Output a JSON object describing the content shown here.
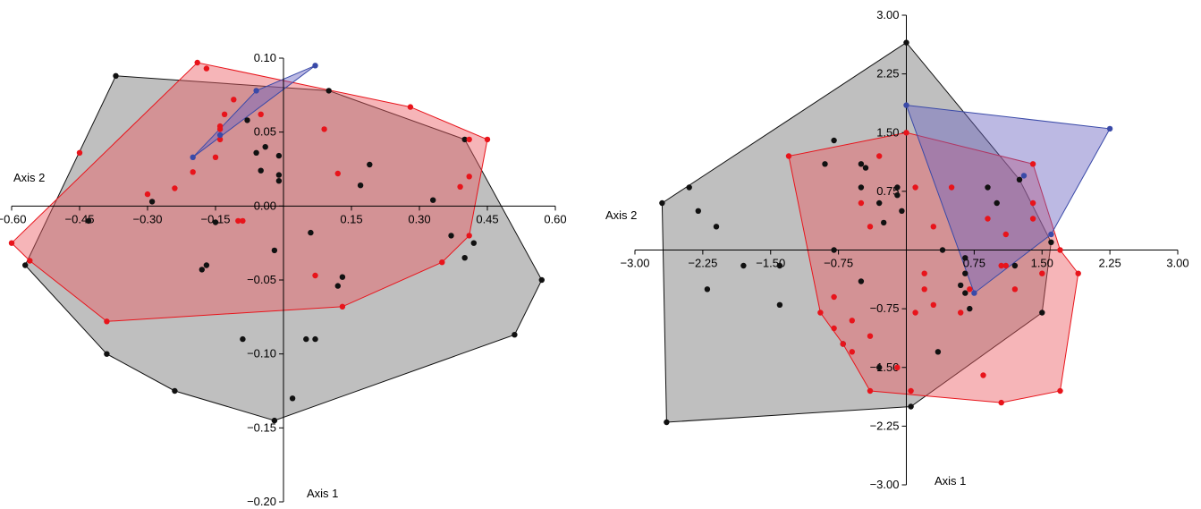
{
  "colors": {
    "black_group": "#111111",
    "black_hull_fill": "#a9a9a9",
    "red_group": "#e8141b",
    "red_hull_fill": "#ec5a62",
    "blue_group": "#3a4aa8",
    "blue_hull_fill": "#6a63c0"
  },
  "chart_data": [
    {
      "type": "scatter",
      "xlabel": "Axis 2",
      "ylabel": "Axis 1",
      "xlim": [
        -0.6,
        0.6
      ],
      "ylim": [
        -0.2,
        0.1
      ],
      "xticks": [
        -0.6,
        -0.45,
        -0.3,
        -0.15,
        0.15,
        0.3,
        0.45,
        0.6
      ],
      "xtick_labels": [
        "−0.60",
        "−0.45",
        "−0.30",
        "−0.15",
        "0.15",
        "0.30",
        "0.45",
        "0.60"
      ],
      "yticks": [
        0.1,
        0.05,
        0.0,
        -0.05,
        -0.1,
        -0.15,
        -0.2
      ],
      "ytick_labels": [
        "0.10",
        "0.05",
        "0.00",
        "−0.05",
        "−0.10",
        "−0.15",
        "−0.20"
      ],
      "grid": false,
      "series": [
        {
          "color_key": "black_group",
          "hull": [
            [
              -0.57,
              -0.04
            ],
            [
              -0.37,
              0.088
            ],
            [
              0.1,
              0.078
            ],
            [
              0.4,
              0.045
            ],
            [
              0.57,
              -0.05
            ],
            [
              0.51,
              -0.087
            ],
            [
              -0.02,
              -0.145
            ],
            [
              -0.24,
              -0.125
            ],
            [
              -0.39,
              -0.1
            ]
          ],
          "points": [
            [
              -0.57,
              -0.04
            ],
            [
              -0.37,
              0.088
            ],
            [
              0.1,
              0.078
            ],
            [
              0.4,
              0.045
            ],
            [
              0.57,
              -0.05
            ],
            [
              0.51,
              -0.087
            ],
            [
              -0.02,
              -0.145
            ],
            [
              -0.24,
              -0.125
            ],
            [
              -0.39,
              -0.1
            ],
            [
              -0.08,
              0.058
            ],
            [
              -0.06,
              0.036
            ],
            [
              -0.04,
              0.04
            ],
            [
              -0.05,
              0.024
            ],
            [
              -0.01,
              0.034
            ],
            [
              -0.01,
              0.021
            ],
            [
              -0.01,
              0.017
            ],
            [
              0.19,
              0.028
            ],
            [
              0.17,
              0.014
            ],
            [
              -0.29,
              0.003
            ],
            [
              -0.43,
              -0.01
            ],
            [
              -0.15,
              -0.011
            ],
            [
              -0.02,
              -0.03
            ],
            [
              -0.17,
              -0.04
            ],
            [
              -0.18,
              -0.043
            ],
            [
              0.06,
              -0.018
            ],
            [
              0.13,
              -0.048
            ],
            [
              0.12,
              -0.054
            ],
            [
              0.4,
              -0.035
            ],
            [
              0.42,
              -0.025
            ],
            [
              0.37,
              -0.02
            ],
            [
              0.33,
              0.004
            ],
            [
              0.05,
              -0.09
            ],
            [
              0.07,
              -0.09
            ],
            [
              -0.09,
              -0.09
            ],
            [
              0.02,
              -0.13
            ]
          ]
        },
        {
          "color_key": "red_group",
          "hull": [
            [
              -0.6,
              -0.025
            ],
            [
              -0.19,
              0.097
            ],
            [
              0.28,
              0.067
            ],
            [
              0.45,
              0.045
            ],
            [
              0.41,
              -0.02
            ],
            [
              0.35,
              -0.038
            ],
            [
              0.13,
              -0.068
            ],
            [
              -0.39,
              -0.078
            ],
            [
              -0.56,
              -0.037
            ]
          ],
          "points": [
            [
              -0.6,
              -0.025
            ],
            [
              -0.19,
              0.097
            ],
            [
              0.28,
              0.067
            ],
            [
              0.45,
              0.045
            ],
            [
              0.41,
              -0.02
            ],
            [
              0.35,
              -0.038
            ],
            [
              0.13,
              -0.068
            ],
            [
              -0.39,
              -0.078
            ],
            [
              -0.56,
              -0.037
            ],
            [
              -0.45,
              0.036
            ],
            [
              -0.17,
              0.093
            ],
            [
              -0.13,
              0.062
            ],
            [
              -0.11,
              0.072
            ],
            [
              -0.05,
              0.062
            ],
            [
              -0.14,
              0.054
            ],
            [
              -0.14,
              0.052
            ],
            [
              -0.14,
              0.045
            ],
            [
              -0.15,
              0.033
            ],
            [
              0.09,
              0.052
            ],
            [
              0.12,
              0.022
            ],
            [
              -0.2,
              0.023
            ],
            [
              -0.24,
              0.012
            ],
            [
              -0.3,
              0.008
            ],
            [
              -0.1,
              -0.01
            ],
            [
              -0.09,
              -0.01
            ],
            [
              0.41,
              0.045
            ],
            [
              0.41,
              0.02
            ],
            [
              0.39,
              0.013
            ],
            [
              0.07,
              -0.047
            ]
          ]
        },
        {
          "color_key": "blue_group",
          "hull": [
            [
              -0.2,
              0.033
            ],
            [
              -0.06,
              0.078
            ],
            [
              0.07,
              0.095
            ]
          ],
          "points": [
            [
              -0.2,
              0.033
            ],
            [
              -0.06,
              0.078
            ],
            [
              0.07,
              0.095
            ],
            [
              -0.14,
              0.048
            ]
          ]
        }
      ]
    },
    {
      "type": "scatter",
      "xlabel": "Axis 2",
      "ylabel": "Axis 1",
      "xlim": [
        -3.0,
        3.0
      ],
      "ylim": [
        -3.0,
        3.0
      ],
      "xticks": [
        -3.0,
        -2.25,
        -1.5,
        -0.75,
        0.75,
        1.5,
        2.25,
        3.0
      ],
      "xtick_labels": [
        "−3.00",
        "−2.25",
        "−1.50",
        "−0.75",
        "0.75",
        "1.50",
        "2.25",
        "3.00"
      ],
      "yticks": [
        3.0,
        2.25,
        1.5,
        0.75,
        -0.75,
        -1.5,
        -2.25,
        -3.0
      ],
      "ytick_labels": [
        "3.00",
        "2.25",
        "1.50",
        "0.75",
        "−0.75",
        "−1.50",
        "−2.25",
        "−3.00"
      ],
      "grid": false,
      "series": [
        {
          "color_key": "black_group",
          "hull": [
            [
              -2.7,
              0.6
            ],
            [
              0.0,
              2.65
            ],
            [
              1.25,
              0.9
            ],
            [
              1.6,
              0.1
            ],
            [
              1.5,
              -0.8
            ],
            [
              0.05,
              -2.0
            ],
            [
              -2.65,
              -2.2
            ]
          ],
          "points": [
            [
              -2.7,
              0.6
            ],
            [
              0.0,
              2.65
            ],
            [
              1.25,
              0.9
            ],
            [
              1.6,
              0.1
            ],
            [
              1.5,
              -0.8
            ],
            [
              0.05,
              -2.0
            ],
            [
              -2.65,
              -2.2
            ],
            [
              -2.4,
              0.8
            ],
            [
              -2.3,
              0.5
            ],
            [
              -2.1,
              0.3
            ],
            [
              -2.2,
              -0.5
            ],
            [
              -1.8,
              -0.2
            ],
            [
              -1.4,
              -0.2
            ],
            [
              -1.4,
              -0.7
            ],
            [
              -0.9,
              1.1
            ],
            [
              -0.8,
              1.4
            ],
            [
              -0.8,
              0.0
            ],
            [
              -0.7,
              -1.2
            ],
            [
              -0.5,
              -0.4
            ],
            [
              -0.5,
              0.8
            ],
            [
              -0.5,
              1.1
            ],
            [
              -0.45,
              1.05
            ],
            [
              -0.3,
              0.6
            ],
            [
              -0.3,
              -1.5
            ],
            [
              -0.25,
              0.35
            ],
            [
              -0.1,
              0.7
            ],
            [
              -0.05,
              0.5
            ],
            [
              -0.1,
              0.8
            ],
            [
              0.4,
              0.0
            ],
            [
              0.6,
              -0.45
            ],
            [
              0.65,
              -0.1
            ],
            [
              0.65,
              -0.3
            ],
            [
              0.65,
              -0.55
            ],
            [
              0.7,
              -0.75
            ],
            [
              0.9,
              0.8
            ],
            [
              1.0,
              0.6
            ],
            [
              0.35,
              -1.3
            ],
            [
              1.2,
              -0.2
            ]
          ]
        },
        {
          "color_key": "red_group",
          "hull": [
            [
              -1.3,
              1.2
            ],
            [
              0.0,
              1.5
            ],
            [
              1.4,
              1.1
            ],
            [
              1.7,
              0.0
            ],
            [
              1.9,
              -0.3
            ],
            [
              1.7,
              -1.8
            ],
            [
              1.05,
              -1.95
            ],
            [
              -0.4,
              -1.8
            ],
            [
              -0.7,
              -1.2
            ],
            [
              -0.95,
              -0.8
            ]
          ],
          "points": [
            [
              -1.3,
              1.2
            ],
            [
              0.0,
              1.5
            ],
            [
              1.4,
              1.1
            ],
            [
              1.7,
              0.0
            ],
            [
              1.9,
              -0.3
            ],
            [
              1.7,
              -1.8
            ],
            [
              1.05,
              -1.95
            ],
            [
              -0.4,
              -1.8
            ],
            [
              -0.7,
              -1.2
            ],
            [
              -0.95,
              -0.8
            ],
            [
              -0.5,
              0.6
            ],
            [
              -0.3,
              1.2
            ],
            [
              -0.4,
              0.3
            ],
            [
              0.1,
              0.8
            ],
            [
              0.5,
              0.8
            ],
            [
              0.3,
              0.3
            ],
            [
              0.2,
              -0.3
            ],
            [
              0.1,
              -0.8
            ],
            [
              -0.1,
              -1.5
            ],
            [
              0.05,
              -1.8
            ],
            [
              -0.6,
              -0.9
            ],
            [
              -0.8,
              -1.0
            ],
            [
              -0.8,
              -0.6
            ],
            [
              -0.6,
              -1.3
            ],
            [
              -0.4,
              -1.1
            ],
            [
              0.2,
              -0.5
            ],
            [
              0.3,
              -0.7
            ],
            [
              0.6,
              -0.8
            ],
            [
              0.7,
              -0.5
            ],
            [
              0.9,
              0.4
            ],
            [
              1.1,
              0.2
            ],
            [
              1.4,
              0.4
            ],
            [
              1.5,
              -0.3
            ],
            [
              1.2,
              -0.5
            ],
            [
              1.1,
              -0.2
            ],
            [
              1.05,
              -0.2
            ],
            [
              0.85,
              -1.6
            ],
            [
              1.4,
              0.6
            ]
          ]
        },
        {
          "color_key": "blue_group",
          "hull": [
            [
              0.0,
              1.85
            ],
            [
              2.25,
              1.55
            ],
            [
              1.6,
              0.2
            ],
            [
              0.75,
              -0.55
            ]
          ],
          "points": [
            [
              0.0,
              1.85
            ],
            [
              2.25,
              1.55
            ],
            [
              1.6,
              0.2
            ],
            [
              0.75,
              -0.55
            ],
            [
              1.3,
              0.95
            ]
          ]
        }
      ]
    }
  ]
}
